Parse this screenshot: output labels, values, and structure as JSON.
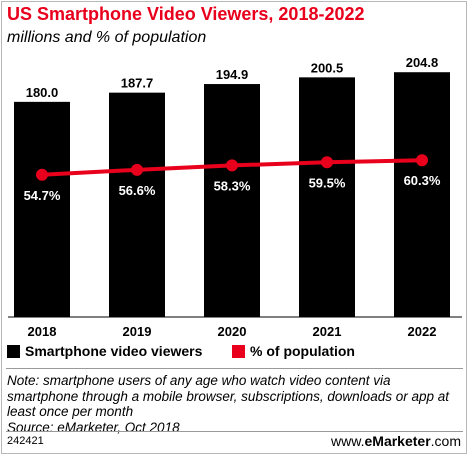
{
  "header": {
    "title": "US Smartphone Video Viewers, 2018-2022",
    "subtitle": "millions and % of population"
  },
  "chart_data": {
    "type": "bar",
    "categories": [
      "2018",
      "2019",
      "2020",
      "2021",
      "2022"
    ],
    "series": [
      {
        "name": "Smartphone video viewers",
        "type": "bar",
        "values": [
          180.0,
          187.7,
          194.9,
          200.5,
          204.8
        ],
        "labels": [
          "180.0",
          "187.7",
          "194.9",
          "200.5",
          "204.8"
        ],
        "color": "#000000"
      },
      {
        "name": "% of population",
        "type": "line",
        "values": [
          54.7,
          56.6,
          58.3,
          59.5,
          60.3
        ],
        "labels": [
          "54.7%",
          "56.6%",
          "58.3%",
          "59.5%",
          "60.3%"
        ],
        "color": "#e8001c"
      }
    ],
    "ylim_bar": [
      0,
      210
    ],
    "ylim_line": [
      0,
      100
    ],
    "grid": false,
    "legend_position": "bottom"
  },
  "legend": {
    "bar_label": "Smartphone video viewers",
    "line_label": "% of population"
  },
  "notes": {
    "note": "Note: smartphone users of any age who watch video content via smartphone through a mobile browser, subscriptions, downloads or app at least once per month",
    "source": "Source: eMarketer, Oct 2018",
    "chart_id": "242421",
    "brand_prefix": "www.",
    "brand_name": "eMarketer",
    "brand_suffix": ".com"
  }
}
